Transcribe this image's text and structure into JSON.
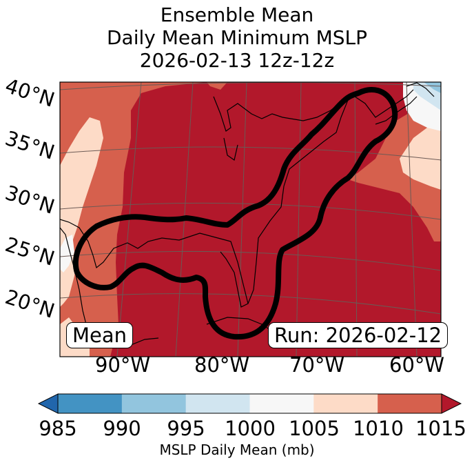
{
  "title_lines": [
    "Ensemble Mean",
    "Daily Mean Minimum MSLP",
    "2026-02-13 12z-12z"
  ],
  "lat_labels": [
    "40°N",
    "35°N",
    "30°N",
    "25°N",
    "20°N"
  ],
  "lon_labels": [
    "90°W",
    "80°W",
    "70°W",
    "60°W"
  ],
  "left_badge": "Mean",
  "right_badge": "Run: 2026-02-12",
  "colorbar": {
    "label": "MSLP Daily Mean (mb)",
    "ticks": [
      "985",
      "990",
      "995",
      "1000",
      "1005",
      "1010",
      "1015"
    ],
    "colors": [
      "#2166ac",
      "#4393c3",
      "#92c5de",
      "#d1e5f0",
      "#f7f7f7",
      "#fddbc7",
      "#d6604d",
      "#b2182b"
    ],
    "extend": "both"
  },
  "colors": {
    "coast": "#000000",
    "contour": "#000000",
    "grid": "#6b5a55"
  }
}
